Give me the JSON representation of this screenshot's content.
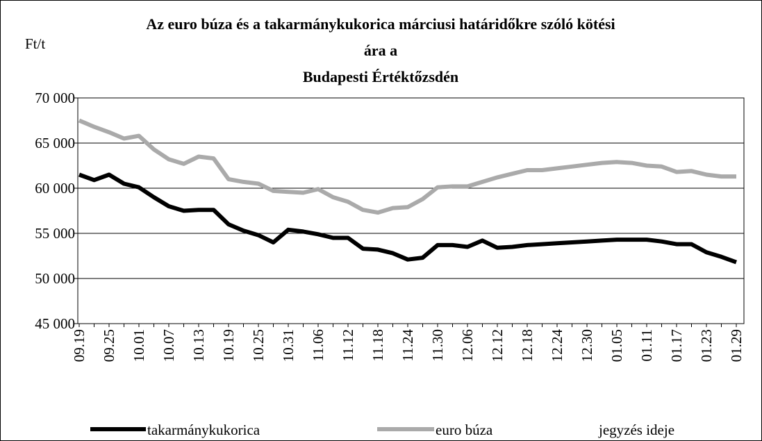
{
  "chart_data": {
    "type": "line",
    "title": [
      "Az euro búza és a takarmánykukorica márciusi határidőkre szóló kötési",
      "ára a",
      "Budapesti Értéktőzsdén"
    ],
    "y_label": "Ft/t",
    "x_label": "jegyzés ideje",
    "categories": [
      "09.19",
      null,
      "09.25",
      null,
      "10.01",
      null,
      "10.07",
      null,
      "10.13",
      null,
      "10.19",
      null,
      "10.25",
      null,
      "10.31",
      null,
      "11.06",
      null,
      "11.12",
      null,
      "11.18",
      null,
      "11.24",
      null,
      "11.30",
      null,
      "12.06",
      null,
      "12.12",
      null,
      "12.18",
      null,
      "12.24",
      null,
      "12.30",
      null,
      "01.05",
      null,
      "01.11",
      null,
      "01.17",
      null,
      "01.23",
      null,
      "01.29"
    ],
    "series": [
      {
        "name": "takarmánykukorica",
        "color": "#000000",
        "values": [
          61500,
          60900,
          61500,
          60500,
          60100,
          59000,
          58000,
          57500,
          57600,
          57600,
          56000,
          55300,
          54800,
          54000,
          55400,
          55200,
          54900,
          54500,
          54500,
          53300,
          53200,
          52800,
          52100,
          52300,
          53700,
          53700,
          53500,
          54200,
          53400,
          53500,
          53700,
          53800,
          53900,
          54000,
          54100,
          54200,
          54300,
          54300,
          54300,
          54100,
          53800,
          53800,
          52900,
          52400,
          51800
        ]
      },
      {
        "name": "euro búza",
        "color": "#aaaaaa",
        "values": [
          67500,
          66800,
          66200,
          65500,
          65800,
          64300,
          63200,
          62700,
          63500,
          63300,
          61000,
          60700,
          60500,
          59700,
          59600,
          59500,
          59900,
          59000,
          58500,
          57600,
          57300,
          57800,
          57900,
          58800,
          60100,
          60200,
          60200,
          60700,
          61200,
          61600,
          62000,
          62000,
          62200,
          62400,
          62600,
          62800,
          62900,
          62800,
          62500,
          62400,
          61800,
          61900,
          61500,
          61300,
          61300
        ]
      }
    ],
    "ylim": [
      45000,
      70000
    ],
    "yticks": [
      {
        "value": 45000,
        "label": "45 000"
      },
      {
        "value": 50000,
        "label": "50 000"
      },
      {
        "value": 55000,
        "label": "55 000"
      },
      {
        "value": 60000,
        "label": "60 000"
      },
      {
        "value": 65000,
        "label": "65 000"
      },
      {
        "value": 70000,
        "label": "70 000"
      }
    ],
    "grid": true,
    "legend": "bottom"
  }
}
